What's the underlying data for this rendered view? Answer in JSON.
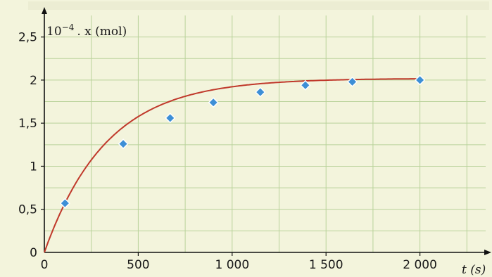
{
  "chart_data": {
    "type": "scatter",
    "title": "",
    "ylabel_prefix": "10",
    "ylabel_exp": "−4",
    "ylabel_rest": ". x (mol)",
    "xlabel": "t (s)",
    "xlim": [
      0,
      2350
    ],
    "ylim": [
      0,
      2.75
    ],
    "xticks": [
      0,
      500,
      1000,
      1500,
      2000
    ],
    "xtick_labels": [
      "0",
      "500",
      "1 000",
      "1 500",
      "2 000"
    ],
    "yticks": [
      0.5,
      1,
      1.5,
      2,
      2.5
    ],
    "ytick_labels": [
      "0,5",
      "1",
      "1,5",
      "2",
      "2,5"
    ],
    "origin_label": "0",
    "grid": true,
    "series": [
      {
        "x": [
          110,
          420,
          670,
          900,
          1150,
          1390,
          1640,
          2000
        ],
        "y": [
          0.57,
          1.26,
          1.56,
          1.74,
          1.86,
          1.94,
          1.98,
          2.0
        ]
      }
    ],
    "fit_curve": {
      "type": "exponential",
      "y_max": 2.02,
      "tau": 330
    },
    "colors": {
      "marker": "#3d8fd6",
      "curve": "#c0392b",
      "grid": "#b9d29a",
      "background": "#f3f4dc"
    }
  }
}
